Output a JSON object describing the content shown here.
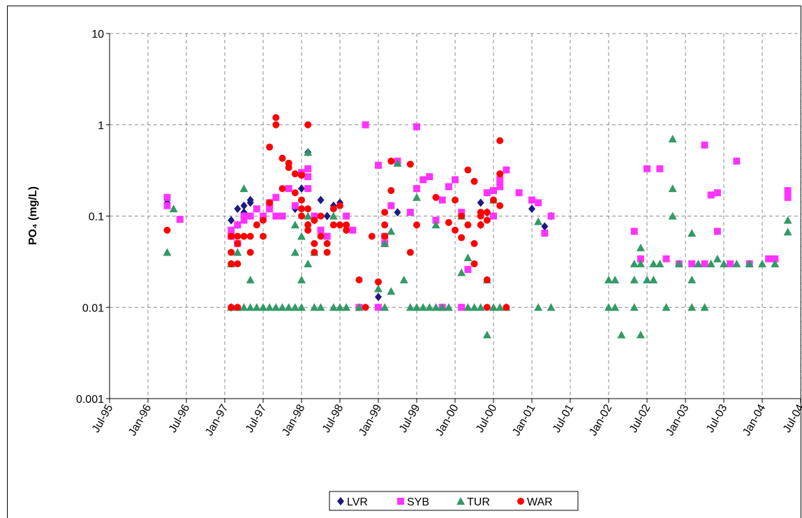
{
  "chart_data": {
    "type": "scatter",
    "y_label": "PO₄ (mg/L)",
    "ylog": true,
    "ylim": [
      0.001,
      10
    ],
    "yticks": [
      0.001,
      0.01,
      0.1,
      1,
      10
    ],
    "xlim": [
      "1995-07",
      "2004-07"
    ],
    "xticks": [
      {
        "value": "1995-07",
        "label": "Jul-95"
      },
      {
        "value": "1996-01",
        "label": "Jan-96"
      },
      {
        "value": "1996-07",
        "label": "Jul-96"
      },
      {
        "value": "1997-01",
        "label": "Jan-97"
      },
      {
        "value": "1997-07",
        "label": "Jul-97"
      },
      {
        "value": "1998-01",
        "label": "Jan-98"
      },
      {
        "value": "1998-07",
        "label": "Jul-98"
      },
      {
        "value": "1999-01",
        "label": "Jan-99"
      },
      {
        "value": "1999-07",
        "label": "Jul-99"
      },
      {
        "value": "2000-01",
        "label": "Jan-00"
      },
      {
        "value": "2000-07",
        "label": "Jul-00"
      },
      {
        "value": "2001-01",
        "label": "Jan-01"
      },
      {
        "value": "2001-07",
        "label": "Jul-01"
      },
      {
        "value": "2002-01",
        "label": "Jan-02"
      },
      {
        "value": "2002-07",
        "label": "Jul-02"
      },
      {
        "value": "2003-01",
        "label": "Jan-03"
      },
      {
        "value": "2003-07",
        "label": "Jul-03"
      },
      {
        "value": "2004-01",
        "label": "Jan-04"
      },
      {
        "value": "2004-07",
        "label": "Jul-04"
      }
    ],
    "grid": true,
    "legend": "bottom",
    "series": [
      {
        "name": "LVR",
        "color": "#1a1a80",
        "marker": "diamond",
        "x": [
          "1996-04",
          "1997-02",
          "1997-02",
          "1997-03",
          "1997-03",
          "1997-04",
          "1997-04",
          "1997-05",
          "1997-05",
          "1997-12",
          "1998-01",
          "1998-02",
          "1998-02",
          "1998-03",
          "1998-04",
          "1998-05",
          "1998-06",
          "1998-07",
          "1999-01",
          "1999-04",
          "2000-05",
          "2000-05",
          "2000-06",
          "2001-01",
          "2001-03",
          "2001-04"
        ],
        "values": [
          0.14,
          0.09,
          0.01,
          0.08,
          0.12,
          0.13,
          0.11,
          0.14,
          0.15,
          0.12,
          0.2,
          0.5,
          0.08,
          0.09,
          0.15,
          0.1,
          0.13,
          0.14,
          0.013,
          0.11,
          0.14,
          0.08,
          0.11,
          0.12,
          0.077,
          0.1
        ]
      },
      {
        "name": "SYB",
        "color": "#ff33ff",
        "marker": "square",
        "x": [
          "1996-04",
          "1996-04",
          "1996-06",
          "1997-02",
          "1997-02",
          "1997-03",
          "1997-03",
          "1997-04",
          "1997-04",
          "1997-05",
          "1997-06",
          "1997-07",
          "1997-08",
          "1997-08",
          "1997-09",
          "1997-09",
          "1997-10",
          "1997-11",
          "1997-12",
          "1998-01",
          "1998-02",
          "1998-02",
          "1998-02",
          "1998-03",
          "1998-04",
          "1998-05",
          "1998-08",
          "1998-09",
          "1998-10",
          "1998-11",
          "1999-01",
          "1999-01",
          "1999-02",
          "1999-02",
          "1999-03",
          "1999-04",
          "1999-06",
          "1999-07",
          "1999-07",
          "1999-08",
          "1999-09",
          "1999-10",
          "1999-11",
          "1999-11",
          "1999-12",
          "2000-01",
          "2000-02",
          "2000-02",
          "2000-03",
          "2000-06",
          "2000-07",
          "2000-07",
          "2000-08",
          "2000-08",
          "2000-09",
          "2000-11",
          "2001-01",
          "2001-02",
          "2001-03",
          "2001-04",
          "2002-05",
          "2002-06",
          "2002-07",
          "2002-09",
          "2002-10",
          "2002-12",
          "2003-02",
          "2003-04",
          "2003-04",
          "2003-05",
          "2003-06",
          "2003-06",
          "2003-08",
          "2003-09",
          "2003-11",
          "2004-02",
          "2004-03",
          "2004-05",
          "2004-05"
        ],
        "values": [
          0.16,
          0.13,
          0.092,
          0.07,
          0.06,
          0.08,
          0.05,
          0.1,
          0.09,
          0.1,
          0.12,
          0.1,
          0.12,
          0.14,
          0.16,
          0.1,
          0.1,
          0.2,
          0.13,
          0.3,
          0.33,
          0.27,
          0.2,
          0.1,
          0.07,
          0.06,
          0.1,
          0.07,
          0.01,
          1,
          0.01,
          0.36,
          0.06,
          0.05,
          0.13,
          0.4,
          0.11,
          0.95,
          0.2,
          0.25,
          0.27,
          0.09,
          0.15,
          0.01,
          0.21,
          0.25,
          0.11,
          0.01,
          0.026,
          0.18,
          0.1,
          0.19,
          0.25,
          0.21,
          0.32,
          0.18,
          0.15,
          0.14,
          0.065,
          0.1,
          0.068,
          0.034,
          0.33,
          0.33,
          0.034,
          0.03,
          0.03,
          0.6,
          0.03,
          0.17,
          0.18,
          0.068,
          0.03,
          0.4,
          0.03,
          0.034,
          0.034,
          0.19,
          0.16
        ]
      },
      {
        "name": "TUR",
        "color": "#339966",
        "marker": "triangle",
        "x": [
          "1996-04",
          "1996-05",
          "1997-02",
          "1997-02",
          "1997-03",
          "1997-03",
          "1997-04",
          "1997-04",
          "1997-05",
          "1997-05",
          "1997-06",
          "1997-07",
          "1997-08",
          "1997-09",
          "1997-10",
          "1997-11",
          "1997-12",
          "1998-01",
          "1997-12",
          "1997-12",
          "1998-01",
          "1998-01",
          "1998-02",
          "1998-02",
          "1998-02",
          "1998-03",
          "1998-03",
          "1998-04",
          "1998-06",
          "1998-06",
          "1998-07",
          "1998-08",
          "1998-10",
          "1999-01",
          "1999-02",
          "1999-02",
          "1999-03",
          "1999-03",
          "1999-04",
          "1999-05",
          "1999-06",
          "1999-07",
          "1999-07",
          "1999-08",
          "1999-09",
          "1999-10",
          "1999-10",
          "1999-11",
          "1999-12",
          "2000-02",
          "2000-02",
          "2000-03",
          "2000-03",
          "2000-04",
          "2000-05",
          "2000-06",
          "2000-06",
          "2000-07",
          "2000-07",
          "2000-08",
          "2000-09",
          "2001-02",
          "2001-02",
          "2001-04",
          "2002-01",
          "2002-01",
          "2002-02",
          "2002-02",
          "2002-03",
          "2002-05",
          "2002-05",
          "2002-05",
          "2002-06",
          "2002-06",
          "2002-06",
          "2002-07",
          "2002-08",
          "2002-08",
          "2002-09",
          "2002-10",
          "2002-11",
          "2002-11",
          "2002-11",
          "2002-12",
          "2003-02",
          "2003-02",
          "2003-02",
          "2003-03",
          "2003-04",
          "2003-05",
          "2003-06",
          "2003-07",
          "2003-09",
          "2003-11",
          "2004-01",
          "2004-03",
          "2004-05",
          "2004-05"
        ],
        "values": [
          0.04,
          0.12,
          0.03,
          0.01,
          0.04,
          0.01,
          0.2,
          0.01,
          0.02,
          0.01,
          0.01,
          0.01,
          0.01,
          0.01,
          0.01,
          0.01,
          0.01,
          0.01,
          0.04,
          0.08,
          0.06,
          0.02,
          0.5,
          0.1,
          0.03,
          0.01,
          0.04,
          0.01,
          0.1,
          0.01,
          0.01,
          0.01,
          0.01,
          0.016,
          0.05,
          0.01,
          0.015,
          0.068,
          0.38,
          0.02,
          0.01,
          0.16,
          0.01,
          0.01,
          0.01,
          0.08,
          0.01,
          0.01,
          0.01,
          0.1,
          0.024,
          0.035,
          0.01,
          0.01,
          0.01,
          0.005,
          0.02,
          0.15,
          0.01,
          0.01,
          0.01,
          0.087,
          0.01,
          0.01,
          0.02,
          0.01,
          0.02,
          0.01,
          0.005,
          0.02,
          0.01,
          0.03,
          0.045,
          0.005,
          0.03,
          0.02,
          0.02,
          0.03,
          0.03,
          0.01,
          0.7,
          0.2,
          0.1,
          0.03,
          0.065,
          0.02,
          0.01,
          0.03,
          0.01,
          0.03,
          0.034,
          0.03,
          0.03,
          0.03,
          0.03,
          0.03,
          0.09,
          0.067
        ]
      },
      {
        "name": "WAR",
        "color": "#ff0000",
        "marker": "circle",
        "x": [
          "1996-04",
          "1997-02",
          "1997-02",
          "1997-02",
          "1997-02",
          "1997-03",
          "1997-03",
          "1997-03",
          "1997-03",
          "1997-04",
          "1997-05",
          "1997-05",
          "1997-06",
          "1997-07",
          "1997-07",
          "1997-08",
          "1997-08",
          "1997-09",
          "1997-09",
          "1997-10",
          "1997-10",
          "1997-11",
          "1997-11",
          "1997-12",
          "1997-12",
          "1998-01",
          "1998-01",
          "1998-01",
          "1998-01",
          "1998-02",
          "1998-02",
          "1998-02",
          "1998-02",
          "1998-03",
          "1998-03",
          "1998-03",
          "1998-04",
          "1998-04",
          "1998-05",
          "1998-05",
          "1998-06",
          "1998-06",
          "1998-07",
          "1998-07",
          "1998-08",
          "1998-08",
          "1998-10",
          "1998-11",
          "1998-12",
          "1999-01",
          "1999-02",
          "1999-02",
          "1999-03",
          "1999-03",
          "1999-02",
          "1999-06",
          "1999-06",
          "1999-07",
          "1999-10",
          "1999-12",
          "2000-01",
          "2000-01",
          "2000-02",
          "2000-02",
          "2000-03",
          "2000-03",
          "2000-04",
          "2000-04",
          "2000-04",
          "2000-05",
          "2000-05",
          "2000-05",
          "2000-06",
          "2000-06",
          "2000-06",
          "2000-06",
          "2000-07",
          "2000-08",
          "2000-08",
          "2000-08",
          "2000-09"
        ],
        "values": [
          0.07,
          0.06,
          0.04,
          0.03,
          0.01,
          0.05,
          0.01,
          0.06,
          0.03,
          0.06,
          0.06,
          0.04,
          0.08,
          0.09,
          0.06,
          0.14,
          0.57,
          1.2,
          1,
          0.43,
          0.2,
          0.38,
          0.34,
          0.29,
          0.18,
          0.15,
          0.1,
          0.12,
          0.28,
          0.08,
          0.07,
          1,
          0.12,
          0.09,
          0.05,
          0.04,
          0.1,
          0.06,
          0.04,
          0.05,
          0.08,
          0.12,
          0.13,
          0.08,
          0.08,
          0.07,
          0.02,
          0.01,
          0.06,
          0.019,
          0.08,
          0.11,
          0.19,
          0.4,
          0.06,
          0.37,
          0.04,
          0.08,
          0.16,
          0.085,
          0.15,
          0.07,
          0.1,
          0.058,
          0.08,
          0.32,
          0.24,
          0.05,
          0.03,
          0.1,
          0.11,
          0.08,
          0.09,
          0.02,
          0.01,
          0.11,
          0.15,
          0.13,
          0.29,
          0.67,
          0.01
        ]
      }
    ]
  }
}
